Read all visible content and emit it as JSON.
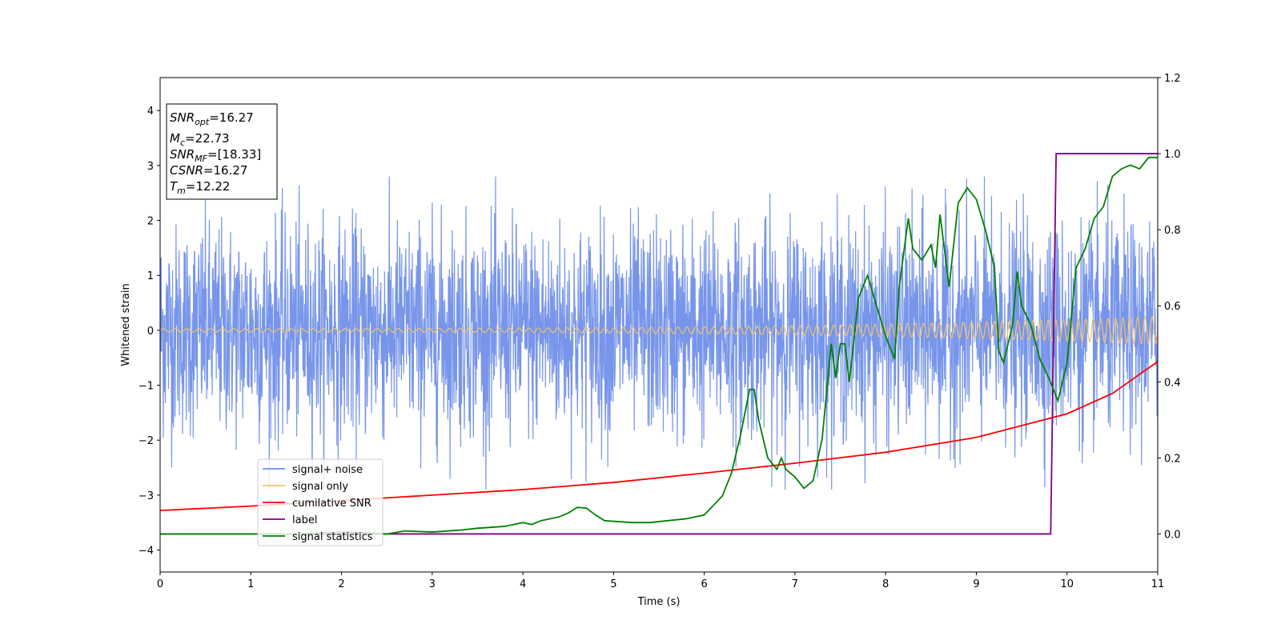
{
  "chart_data": {
    "type": "line",
    "xlabel": "Time (s)",
    "ylabel": "Whitened strain",
    "xlim": [
      0,
      11
    ],
    "ylim": [
      -4.4,
      4.6
    ],
    "y2lim": [
      -0.1,
      1.2
    ],
    "x_ticks": [
      "0",
      "1",
      "2",
      "3",
      "4",
      "5",
      "6",
      "7",
      "8",
      "9",
      "10",
      "11"
    ],
    "y_ticks": [
      "−4",
      "−3",
      "−2",
      "−1",
      "0",
      "1",
      "2",
      "3",
      "4"
    ],
    "y2_ticks": [
      "0.0",
      "0.2",
      "0.4",
      "0.6",
      "0.8",
      "1.0",
      "1.2"
    ],
    "grid": false,
    "legend_position": "lower-left",
    "info_box": {
      "lines": [
        {
          "sym": "SNR",
          "sub": "opt",
          "val": "=16.27"
        },
        {
          "sym": "M",
          "sub": "c",
          "val": "=22.73"
        },
        {
          "sym": "SNR",
          "sub": "MF",
          "val": "=[18.33]"
        },
        {
          "sym": "CSNR",
          "sub": "",
          "val": "=16.27"
        },
        {
          "sym": "T",
          "sub": "m",
          "val": "=12.22"
        }
      ]
    },
    "series": [
      {
        "name": "signal+ noise",
        "color": "#6b8ce8",
        "axis": "left",
        "noise_amplitude": 1.0,
        "upper_envelope": 2.4,
        "lower_envelope": -2.5
      },
      {
        "name": "signal only",
        "color": "#f5c26b",
        "axis": "left",
        "amplitude_start": 0.03,
        "amplitude_end": 0.25,
        "cycles": 110
      },
      {
        "name": "cumilative SNR",
        "color": "#ff0000",
        "axis": "left",
        "x": [
          0,
          1,
          2,
          3,
          4,
          5,
          6,
          7,
          8,
          9,
          10,
          10.5,
          11
        ],
        "values": [
          -3.28,
          -3.2,
          -3.1,
          -3.0,
          -2.9,
          -2.77,
          -2.6,
          -2.42,
          -2.22,
          -1.95,
          -1.52,
          -1.15,
          -0.57
        ]
      },
      {
        "name": "label",
        "color": "#800080",
        "axis": "right",
        "x": [
          0,
          9.82,
          9.88,
          11
        ],
        "values": [
          0.0,
          0.0,
          1.0,
          1.0
        ]
      },
      {
        "name": "signal statistics",
        "color": "#008000",
        "axis": "right",
        "x": [
          0,
          0.5,
          1,
          1.5,
          2,
          2.3,
          2.5,
          2.7,
          3,
          3.3,
          3.5,
          3.8,
          4,
          4.1,
          4.2,
          4.4,
          4.5,
          4.6,
          4.7,
          4.8,
          4.9,
          5.2,
          5.4,
          5.6,
          5.8,
          6.0,
          6.1,
          6.2,
          6.3,
          6.4,
          6.5,
          6.55,
          6.6,
          6.7,
          6.8,
          6.85,
          6.9,
          7.0,
          7.1,
          7.2,
          7.3,
          7.4,
          7.45,
          7.5,
          7.55,
          7.6,
          7.7,
          7.8,
          7.9,
          8.0,
          8.1,
          8.15,
          8.25,
          8.3,
          8.4,
          8.5,
          8.55,
          8.6,
          8.7,
          8.8,
          8.9,
          9.0,
          9.1,
          9.2,
          9.25,
          9.3,
          9.35,
          9.4,
          9.45,
          9.5,
          9.6,
          9.7,
          9.8,
          9.85,
          9.9,
          10.0,
          10.1,
          10.2,
          10.3,
          10.4,
          10.5,
          10.6,
          10.7,
          10.8,
          10.9,
          11
        ],
        "values": [
          0.0,
          0.0,
          0.0,
          0.0,
          0.005,
          0.003,
          0.0,
          0.008,
          0.005,
          0.01,
          0.015,
          0.02,
          0.03,
          0.025,
          0.035,
          0.045,
          0.055,
          0.07,
          0.068,
          0.05,
          0.035,
          0.03,
          0.03,
          0.035,
          0.04,
          0.05,
          0.075,
          0.1,
          0.16,
          0.26,
          0.38,
          0.38,
          0.3,
          0.2,
          0.17,
          0.2,
          0.17,
          0.15,
          0.12,
          0.14,
          0.25,
          0.5,
          0.41,
          0.5,
          0.5,
          0.4,
          0.62,
          0.68,
          0.6,
          0.52,
          0.46,
          0.65,
          0.83,
          0.75,
          0.72,
          0.76,
          0.7,
          0.84,
          0.65,
          0.87,
          0.91,
          0.88,
          0.8,
          0.7,
          0.48,
          0.45,
          0.5,
          0.55,
          0.69,
          0.6,
          0.55,
          0.46,
          0.41,
          0.38,
          0.35,
          0.45,
          0.7,
          0.75,
          0.83,
          0.86,
          0.94,
          0.96,
          0.97,
          0.96,
          0.99,
          0.99
        ]
      }
    ]
  }
}
